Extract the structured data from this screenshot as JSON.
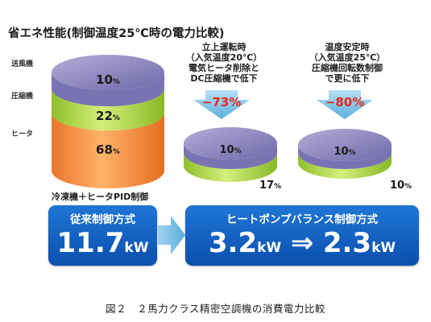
{
  "title": "省エネ性能(制御温度25℃時の電力比較)",
  "legend": {
    "fan": "送風機",
    "compressor": "圧縮機",
    "heater": "ヒータ"
  },
  "colors": {
    "fan": "#8f88c0",
    "compressor": "#b3d84a",
    "heater": "#f39440",
    "arrow": "#7ec3e6",
    "panel": "#1561c4",
    "reduction": "#e8251c"
  },
  "sublabel_left": "冷凍機＋ヒータPID制御",
  "panel_left": {
    "heading": "従来制御方式",
    "value": "11.7",
    "unit": "kW"
  },
  "panel_right": {
    "heading": "ヒートポンプバランス制御方式",
    "value_from": "3.2",
    "value_to": "2.3",
    "unit": "kW",
    "arrow": "⇒"
  },
  "note_startup": [
    "立上運転時",
    "（入気温度20℃）",
    "電気ヒータ削除と",
    "DC圧縮機で低下"
  ],
  "note_stable": [
    "温度安定時",
    "（入気温度25℃）",
    "圧縮機回転数制御",
    "で更に低下"
  ],
  "caption": "図２　２馬力クラス精密空調機の消費電力比較",
  "chart_data": {
    "type": "bar",
    "title": "省エネ性能(制御温度25℃時の電力比較)",
    "categories": [
      "冷凍機＋ヒータPID制御",
      "立上運転時",
      "温度安定時"
    ],
    "series": [
      {
        "name": "送風機",
        "values": [
          10,
          10,
          10
        ]
      },
      {
        "name": "圧縮機",
        "values": [
          22,
          17,
          10
        ]
      },
      {
        "name": "ヒータ",
        "values": [
          68,
          0,
          0
        ]
      }
    ],
    "unit_symbol": "%",
    "reductions": [
      "−73%",
      "−80%"
    ],
    "power_kw": [
      11.7,
      3.2,
      2.3
    ]
  }
}
